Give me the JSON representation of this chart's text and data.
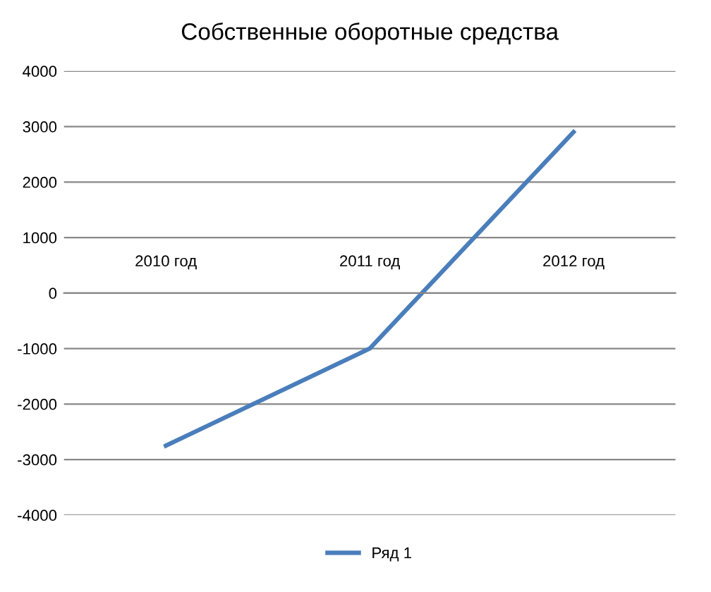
{
  "chart_data": {
    "type": "line",
    "title": "Собственные оборотные средства",
    "categories": [
      "2010 год",
      "2011 год",
      "2012 год"
    ],
    "series": [
      {
        "name": "Ряд 1",
        "color": "#4a7ebb",
        "values": [
          -2750,
          -1000,
          2900
        ]
      }
    ],
    "ylim": [
      -4000,
      4000
    ],
    "yticks": [
      -4000,
      -3000,
      -2000,
      -1000,
      0,
      1000,
      2000,
      3000,
      4000
    ],
    "grid": "y",
    "legend": "bottom",
    "marker": "none",
    "line_style": "solid"
  }
}
